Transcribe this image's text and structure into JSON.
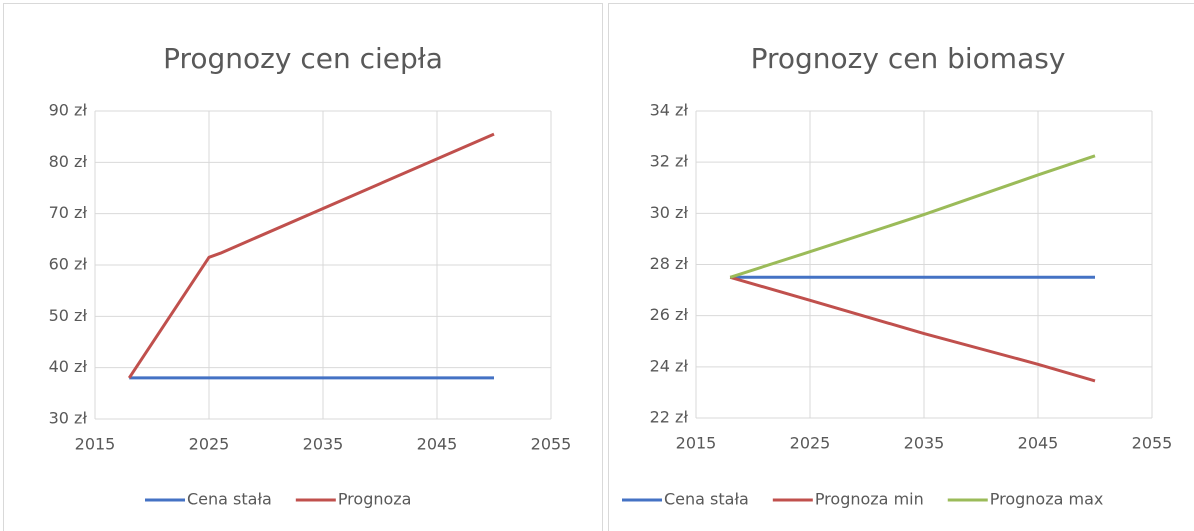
{
  "chart_data": [
    {
      "type": "line",
      "title": "Prognozy cen ciepła",
      "x": [
        2018,
        2025,
        2026,
        2050
      ],
      "series": [
        {
          "name": "Cena stała",
          "color": "#4472c4",
          "values": [
            38,
            38,
            38,
            38
          ]
        },
        {
          "name": "Prognoza",
          "color": "#c0504d",
          "values": [
            38,
            61.5,
            62.3,
            85.5
          ]
        }
      ],
      "xlim": [
        2015,
        2055
      ],
      "xticks": [
        2015,
        2025,
        2035,
        2045,
        2055
      ],
      "ylim": [
        30,
        90
      ],
      "yticks": [
        {
          "value": 30,
          "label": "30 zł"
        },
        {
          "value": 40,
          "label": "40 zł"
        },
        {
          "value": 50,
          "label": "50 zł"
        },
        {
          "value": 60,
          "label": "60 zł"
        },
        {
          "value": 70,
          "label": "70 zł"
        },
        {
          "value": 80,
          "label": "80 zł"
        },
        {
          "value": 90,
          "label": "90 zł"
        }
      ],
      "grid": true,
      "legend": "bottom"
    },
    {
      "type": "line",
      "title": "Prognozy cen biomasy",
      "x": [
        2018,
        2025,
        2035,
        2045,
        2050
      ],
      "series": [
        {
          "name": "Cena stała",
          "color": "#4472c4",
          "values": [
            27.5,
            27.5,
            27.5,
            27.5,
            27.5
          ]
        },
        {
          "name": "Prognoza min",
          "color": "#c0504d",
          "values": [
            27.5,
            26.6,
            25.3,
            24.1,
            23.45
          ]
        },
        {
          "name": "Prognoza max",
          "color": "#9bbb59",
          "values": [
            27.5,
            28.5,
            29.95,
            31.5,
            32.25
          ]
        }
      ],
      "xlim": [
        2015,
        2055
      ],
      "xticks": [
        2015,
        2025,
        2035,
        2045,
        2055
      ],
      "ylim": [
        22,
        34
      ],
      "yticks": [
        {
          "value": 22,
          "label": "22 zł"
        },
        {
          "value": 24,
          "label": "24 zł"
        },
        {
          "value": 26,
          "label": "26 zł"
        },
        {
          "value": 28,
          "label": "28 zł"
        },
        {
          "value": 30,
          "label": "30 zł"
        },
        {
          "value": 32,
          "label": "32 zł"
        },
        {
          "value": 34,
          "label": "34 zł"
        }
      ],
      "grid": true,
      "legend": "bottom"
    }
  ]
}
